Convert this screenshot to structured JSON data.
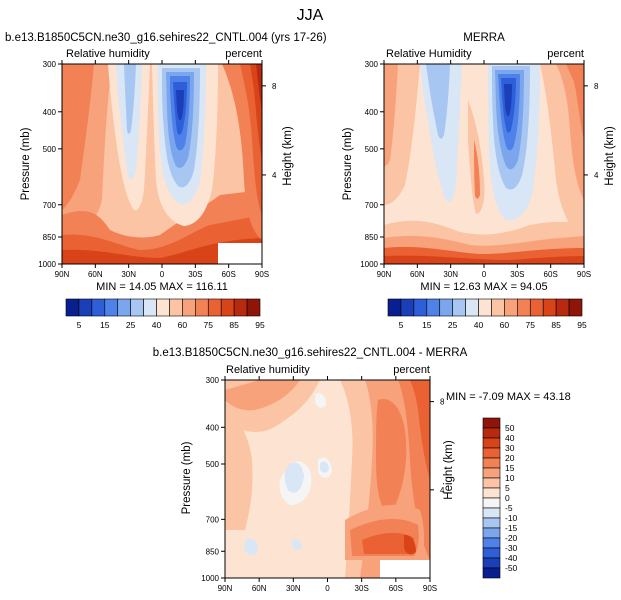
{
  "figure": {
    "title": "JJA"
  },
  "colors": {
    "rh_palette": [
      "#0a1f8f",
      "#1a3fb8",
      "#2f5fd8",
      "#4f82e8",
      "#7ba6ee",
      "#a8c6f2",
      "#d8e6f6",
      "#fde4d2",
      "#fbc4a4",
      "#f8a27c",
      "#f28256",
      "#ea6233",
      "#d94318",
      "#b82a10",
      "#8e1508"
    ],
    "diff_palette": [
      "#0a1f8f",
      "#1a3fb8",
      "#2f5fd8",
      "#4f82e8",
      "#7ba6ee",
      "#a8c6f2",
      "#d8e6f6",
      "#f5f5f5",
      "#fde4d2",
      "#fbc4a4",
      "#f8a27c",
      "#f28256",
      "#ea6233",
      "#d94318",
      "#b82a10",
      "#8e1508"
    ]
  },
  "chart_data": [
    {
      "type": "heatmap",
      "title": "b.e13.B1850C5CN.ne30_g16.sehires22_CNTL.004 (yrs 17-26)",
      "subtitle_left": "Relative humidity",
      "subtitle_right": "percent",
      "ylabel": "Pressure (mb)",
      "ylabel_right": "Height (km)",
      "x_ticks": [
        "90N",
        "60N",
        "30N",
        "0",
        "30S",
        "60S",
        "90S"
      ],
      "y_ticks": [
        "300",
        "400",
        "500",
        "700",
        "850",
        "1000"
      ],
      "y_ticks_right": [
        "8",
        "4"
      ],
      "stats": "MIN = 14.05   MAX = 116.11",
      "colorbar_labels": [
        "5",
        "15",
        "25",
        "40",
        "60",
        "75",
        "85",
        "95"
      ]
    },
    {
      "type": "heatmap",
      "title": "MERRA",
      "subtitle_left": "Relative Humidity",
      "subtitle_right": "percent",
      "ylabel": "Pressure (mb)",
      "ylabel_right": "Height (km)",
      "x_ticks": [
        "90N",
        "60N",
        "30N",
        "0",
        "30S",
        "60S",
        "90S"
      ],
      "y_ticks": [
        "300",
        "400",
        "500",
        "700",
        "850",
        "1000"
      ],
      "y_ticks_right": [
        "8",
        "4"
      ],
      "stats": "MIN = 12.63   MAX = 94.05",
      "colorbar_labels": [
        "5",
        "15",
        "25",
        "40",
        "60",
        "75",
        "85",
        "95"
      ]
    },
    {
      "type": "heatmap",
      "title": "b.e13.B1850C5CN.ne30_g16.sehires22_CNTL.004 - MERRA",
      "subtitle_left": "Relative humidity",
      "subtitle_right": "percent",
      "ylabel": "Pressure (mb)",
      "ylabel_right": "Height (km)",
      "x_ticks": [
        "90N",
        "60N",
        "30N",
        "0",
        "30S",
        "60S",
        "90S"
      ],
      "y_ticks": [
        "300",
        "400",
        "500",
        "700",
        "850",
        "1000"
      ],
      "y_ticks_right": [
        "8",
        "4"
      ],
      "stats": "MIN = -7.09  MAX = 43.18",
      "colorbar_labels": [
        "50",
        "40",
        "30",
        "20",
        "15",
        "10",
        "5",
        "0",
        "-5",
        "-10",
        "-15",
        "-20",
        "-30",
        "-40",
        "-50"
      ]
    }
  ]
}
